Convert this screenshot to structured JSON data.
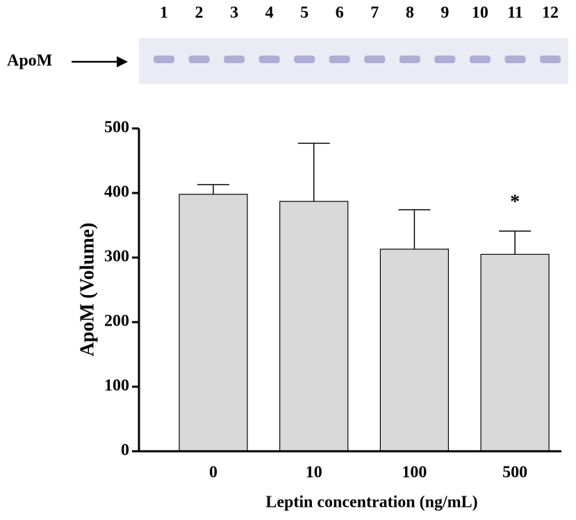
{
  "blot": {
    "label": "ApoM",
    "lanes": [
      "1",
      "2",
      "3",
      "4",
      "5",
      "6",
      "7",
      "8",
      "9",
      "10",
      "11",
      "12"
    ]
  },
  "chart_data": {
    "type": "bar",
    "x_label": "Leptin concentration (ng/mL)",
    "y_label": "ApoM (Volume)",
    "categories": [
      "0",
      "10",
      "100",
      "500"
    ],
    "values": [
      398,
      387,
      313,
      305
    ],
    "errors": [
      15,
      90,
      61,
      36
    ],
    "significance": [
      null,
      null,
      null,
      "*"
    ],
    "color": "#d9d9d9",
    "ylim": [
      0,
      500
    ],
    "yticks": [
      0,
      100,
      200,
      300,
      400,
      500
    ]
  }
}
